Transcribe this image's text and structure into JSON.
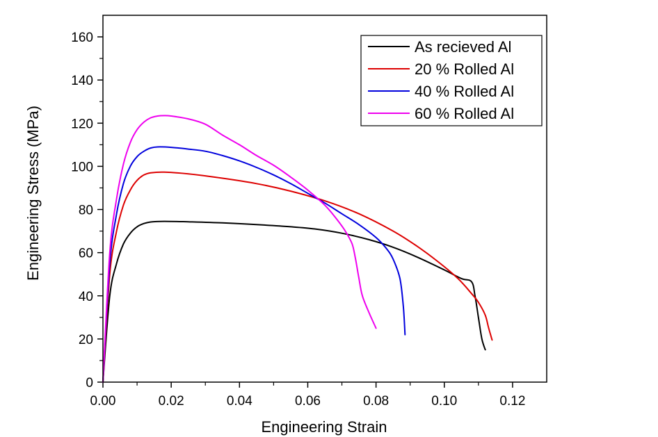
{
  "chart_data": {
    "type": "line",
    "xlabel": "Engineering Strain",
    "ylabel": "Engineering Stress (MPa)",
    "xlim": [
      0.0,
      0.13
    ],
    "ylim": [
      0,
      170
    ],
    "xticks": [
      "0.00",
      "0.02",
      "0.04",
      "0.06",
      "0.08",
      "0.10",
      "0.12"
    ],
    "yticks": [
      "0",
      "20",
      "40",
      "60",
      "80",
      "100",
      "120",
      "140",
      "160"
    ],
    "grid": false,
    "legend_position": "top-right",
    "series": [
      {
        "name": "As recieved Al",
        "color": "#000000",
        "x": [
          0,
          0.002,
          0.004,
          0.006,
          0.008,
          0.01,
          0.012,
          0.014,
          0.018,
          0.025,
          0.035,
          0.045,
          0.055,
          0.062,
          0.07,
          0.078,
          0.085,
          0.092,
          0.1,
          0.105,
          0.108,
          0.109,
          0.11,
          0.111,
          0.112
        ],
        "y": [
          0,
          40,
          55,
          64,
          69,
          72,
          73.5,
          74.2,
          74.5,
          74.3,
          73.8,
          73.0,
          72.0,
          71.0,
          69.0,
          66.0,
          62.5,
          58.0,
          52.0,
          48.0,
          46.5,
          40.0,
          30.0,
          20.0,
          15.0
        ]
      },
      {
        "name": "20 % Rolled Al",
        "color": "#dd0000",
        "x": [
          0,
          0.002,
          0.004,
          0.006,
          0.008,
          0.01,
          0.012,
          0.014,
          0.018,
          0.025,
          0.035,
          0.045,
          0.055,
          0.065,
          0.075,
          0.085,
          0.092,
          0.098,
          0.104,
          0.108,
          0.11,
          0.112,
          0.113,
          0.114
        ],
        "y": [
          0,
          50,
          70,
          82,
          89,
          93.5,
          96,
          97,
          97.3,
          96.5,
          94.5,
          92.0,
          88.5,
          84.0,
          78.0,
          70.0,
          63.0,
          56.0,
          48.0,
          41.0,
          37.0,
          31.0,
          25.0,
          19.5
        ]
      },
      {
        "name": "40 % Rolled Al",
        "color": "#0000dd",
        "x": [
          0,
          0.002,
          0.004,
          0.006,
          0.008,
          0.01,
          0.012,
          0.014,
          0.016,
          0.02,
          0.025,
          0.03,
          0.035,
          0.04,
          0.045,
          0.05,
          0.055,
          0.06,
          0.065,
          0.07,
          0.075,
          0.08,
          0.083,
          0.085,
          0.087,
          0.088,
          0.0885
        ],
        "y": [
          0,
          55,
          78,
          92,
          100,
          104.5,
          107,
          108.5,
          109,
          108.8,
          108,
          107,
          105,
          102.5,
          99.5,
          96.0,
          92.0,
          87.5,
          83.0,
          78.0,
          73.0,
          67.0,
          62.0,
          57.0,
          48.0,
          35.0,
          22.0
        ]
      },
      {
        "name": "60 % Rolled Al",
        "color": "#ee00ee",
        "x": [
          0,
          0.002,
          0.004,
          0.006,
          0.008,
          0.01,
          0.012,
          0.014,
          0.016,
          0.018,
          0.02,
          0.025,
          0.03,
          0.035,
          0.04,
          0.045,
          0.05,
          0.055,
          0.06,
          0.065,
          0.068,
          0.071,
          0.073,
          0.074,
          0.075,
          0.076,
          0.078,
          0.08
        ],
        "y": [
          0,
          60,
          85,
          101,
          111,
          117,
          120.5,
          122.5,
          123.3,
          123.5,
          123.3,
          122,
          119.5,
          114.5,
          110,
          105,
          100.5,
          95.0,
          89.0,
          82.0,
          76.5,
          70.0,
          64.0,
          57.0,
          48.0,
          40.0,
          32.0,
          25.0
        ]
      }
    ]
  }
}
